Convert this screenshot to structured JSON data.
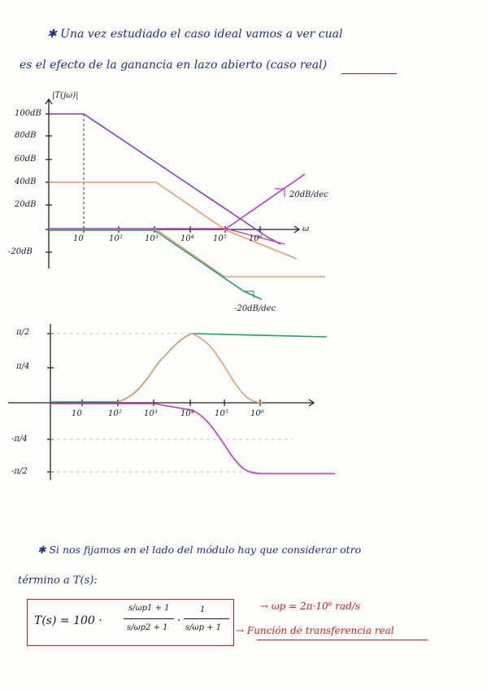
{
  "text": {
    "line1": "✱ Una vez estudiado el caso ideal vamos a ver cual",
    "line2": "es el efecto de la ganancia en lazo abierto (caso real)",
    "line3": "✱ Si nos fijamos en el lado del módulo hay que considerar otro",
    "line4": "término a T(s):",
    "formula_lhs": "T(s) = 100 ·",
    "frac1_num": "s/ωp1 + 1",
    "frac1_den": "s/ωp2 + 1",
    "frac2_num": "1",
    "frac2_den": "s/ωp + 1",
    "arrow1": "→ ωp = 2π·10⁶ rad/s",
    "arrow2": "→ Función de transferencia real"
  },
  "mag_plot": {
    "ylabel": "|T(jω)|",
    "xlabel": "ω",
    "y_ticks": [
      "100dB",
      "80dB",
      "60dB",
      "40dB",
      "20dB",
      "-20dB"
    ],
    "x_ticks": [
      "10",
      "10²",
      "10³",
      "10⁴",
      "10⁵",
      "10⁶"
    ],
    "slope_up": "20dB/dec",
    "slope_down": "-20dB/dec"
  },
  "phase_plot": {
    "y_ticks": [
      "π/2",
      "π/4",
      "-π/4",
      "-π/2"
    ],
    "x_ticks": [
      "10",
      "10²",
      "10³",
      "10⁴",
      "10⁵",
      "10⁶"
    ]
  },
  "colors": {
    "ink_blue": "#1f2d8f",
    "ink_red": "#c8201e",
    "purple": "#8a3fb5",
    "orange": "#e0a070",
    "green": "#2a9a7a",
    "magenta": "#c23ac2",
    "axis": "#222222"
  }
}
